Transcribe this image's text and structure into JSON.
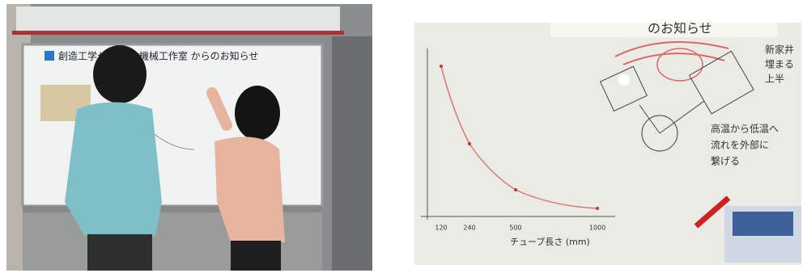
{
  "left_photo": {
    "sign": "創造工学センター 機械工作室 からのお知らせ"
  },
  "right_photo": {
    "header": "のお知らせ",
    "notes": [
      "新家井",
      "埋まる",
      "上半",
      "高温から低温へ",
      "流れを外部に",
      "繋げる"
    ],
    "x_axis_label": "チューブ長さ (mm)",
    "x_tick_labels": [
      "120",
      "240",
      "500",
      "1000"
    ]
  }
}
